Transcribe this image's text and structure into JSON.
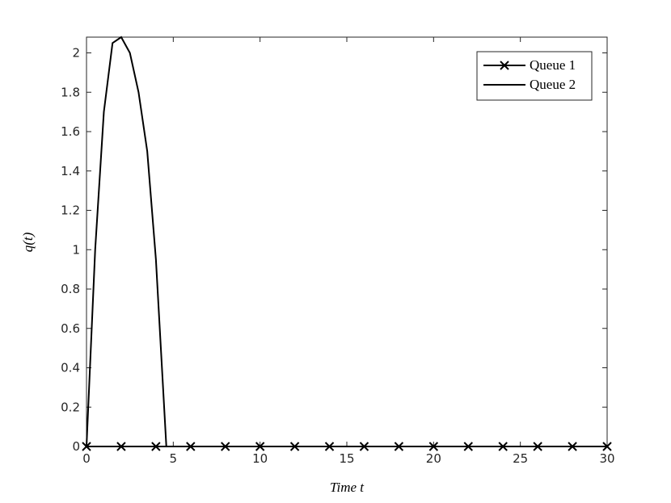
{
  "chart_data": {
    "type": "line",
    "xlabel": "Time t",
    "ylabel": "q(t)",
    "xlim": [
      0,
      30
    ],
    "ylim": [
      0,
      2.08
    ],
    "xticks": [
      0,
      5,
      10,
      15,
      20,
      25,
      30
    ],
    "yticks": [
      0,
      0.2,
      0.4,
      0.6,
      0.8,
      1,
      1.2,
      1.4,
      1.6,
      1.8,
      2
    ],
    "legend": "upper right",
    "series": [
      {
        "name": "Queue 1",
        "color": "#000000",
        "marker": "x",
        "x": [
          0,
          2,
          4,
          6,
          8,
          10,
          12,
          14,
          16,
          18,
          20,
          22,
          24,
          26,
          28,
          30
        ],
        "values": [
          0,
          0,
          0,
          0,
          0,
          0,
          0,
          0,
          0,
          0,
          0,
          0,
          0,
          0,
          0,
          0
        ]
      },
      {
        "name": "Queue 2",
        "color": "#000000",
        "x": [
          0,
          0.5,
          1,
          1.5,
          2,
          2.5,
          3,
          3.5,
          4,
          4.6,
          30
        ],
        "values": [
          0,
          1.0,
          1.7,
          2.05,
          2.08,
          2.0,
          1.8,
          1.5,
          0.95,
          0,
          0
        ]
      }
    ]
  }
}
